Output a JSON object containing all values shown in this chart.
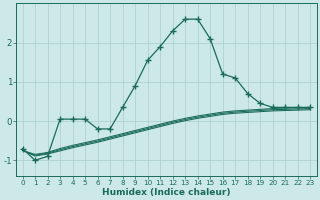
{
  "xlabel": "Humidex (Indice chaleur)",
  "background_color": "#cce8e8",
  "grid_color": "#aacece",
  "line_color": "#1a6b5a",
  "x_values": [
    0,
    1,
    2,
    3,
    4,
    5,
    6,
    7,
    8,
    9,
    10,
    11,
    12,
    13,
    14,
    15,
    16,
    17,
    18,
    19,
    20,
    21,
    22,
    23
  ],
  "line1_y": [
    -0.7,
    -1.0,
    -0.9,
    0.05,
    0.05,
    0.05,
    -0.2,
    -0.2,
    0.35,
    0.9,
    1.55,
    1.9,
    2.3,
    2.6,
    2.6,
    2.1,
    1.2,
    1.1,
    0.7,
    0.45,
    0.35,
    0.35,
    0.35,
    0.35
  ],
  "line2_y": [
    -0.75,
    -0.85,
    -0.8,
    -0.7,
    -0.62,
    -0.55,
    -0.48,
    -0.4,
    -0.32,
    -0.24,
    -0.16,
    -0.08,
    0.0,
    0.07,
    0.13,
    0.18,
    0.23,
    0.26,
    0.28,
    0.3,
    0.32,
    0.33,
    0.34,
    0.35
  ],
  "line3_y": [
    -0.75,
    -0.87,
    -0.82,
    -0.73,
    -0.65,
    -0.58,
    -0.51,
    -0.43,
    -0.35,
    -0.27,
    -0.19,
    -0.11,
    -0.03,
    0.04,
    0.1,
    0.15,
    0.2,
    0.23,
    0.25,
    0.27,
    0.29,
    0.3,
    0.31,
    0.32
  ],
  "line4_y": [
    -0.75,
    -0.89,
    -0.84,
    -0.76,
    -0.68,
    -0.61,
    -0.54,
    -0.46,
    -0.38,
    -0.3,
    -0.22,
    -0.14,
    -0.06,
    0.01,
    0.07,
    0.12,
    0.17,
    0.2,
    0.22,
    0.24,
    0.26,
    0.27,
    0.28,
    0.29
  ],
  "xlim": [
    -0.5,
    23.5
  ],
  "ylim": [
    -1.4,
    3.0
  ],
  "yticks": [
    -1,
    0,
    1,
    2
  ],
  "xticks": [
    0,
    1,
    2,
    3,
    4,
    5,
    6,
    7,
    8,
    9,
    10,
    11,
    12,
    13,
    14,
    15,
    16,
    17,
    18,
    19,
    20,
    21,
    22,
    23
  ],
  "marker": "+",
  "markersize": 4,
  "linewidth": 0.9,
  "tick_fontsize": 5.2,
  "xlabel_fontsize": 6.5
}
